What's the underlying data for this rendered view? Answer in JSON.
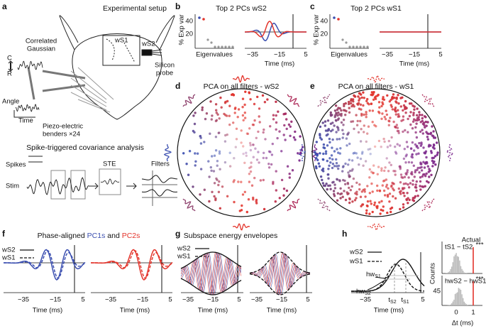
{
  "panels": {
    "a": {
      "label": "a",
      "title": "Experimental setup",
      "stim_1": "Correlated",
      "stim_2": "Gaussian",
      "axis_c": "C",
      "axis_r": "R",
      "angle": "Angle",
      "time": "Time",
      "ws1": "wS1",
      "ws2": "wS2",
      "probe_1": "Silicon",
      "probe_2": "probe",
      "benders_1": "Piezo-electric",
      "benders_2": "benders ×24",
      "stc_title": "Spike-triggered covariance analysis",
      "spikes": "Spikes",
      "stim": "Stim",
      "ste": "STE",
      "filters": "Filters"
    },
    "b": {
      "label": "b",
      "title": "Top 2 PCs wS2",
      "ylabel": "% Exp var",
      "yticks": [
        "40",
        "20"
      ],
      "eig": "Eigenvalues",
      "xticks": [
        "−35",
        "−15",
        "5"
      ],
      "xlabel": "Time (ms)"
    },
    "c": {
      "label": "c",
      "title": "Top 2 PCs wS1",
      "ylabel": "% Exp var",
      "yticks": [
        "40",
        "20"
      ],
      "eig": "Eigenvalues",
      "xticks": [
        "−35",
        "−15",
        "5"
      ],
      "xlabel": "Time (ms)"
    },
    "d": {
      "label": "d",
      "title": "PCA on all filters - wS2"
    },
    "e": {
      "label": "e",
      "title": "PCA on all filters - wS1"
    },
    "f": {
      "label": "f",
      "title_1": "Phase-aligned ",
      "title_2": "PC1s",
      "title_3": " and ",
      "title_4": "PC2s",
      "legend": [
        "wS2",
        "wS1"
      ],
      "xticks": [
        "−35",
        "−15",
        "5"
      ],
      "xlabel": "Time (ms)"
    },
    "g": {
      "label": "g",
      "title": "Subspace energy envelopes",
      "legend": [
        "wS2",
        "wS1"
      ],
      "xticks": [
        "−35",
        "−15",
        "5"
      ],
      "xlabel": "Time (ms)"
    },
    "h": {
      "label": "h",
      "legend": [
        "wS2",
        "wS1"
      ],
      "hw1": {
        "main": "hw",
        "sub": "S1"
      },
      "hw2": {
        "main": "hw",
        "sub": "S2"
      },
      "xticks": [
        "−35",
        "5"
      ],
      "t2": {
        "main": "t",
        "sub": "S2"
      },
      "t1": {
        "main": "t",
        "sub": "S1"
      },
      "xlabel": "Time (ms)",
      "hist_top": "tS1 − tS2",
      "actual": "Actual",
      "stars_top": "***",
      "hist_bottom": "hwS2 − hwS1",
      "stars_bottom": "***",
      "ylabel": "Counts",
      "ytick": "45",
      "dticks": [
        "0",
        "1"
      ],
      "dlabel": "Δt (ms)"
    }
  }
}
